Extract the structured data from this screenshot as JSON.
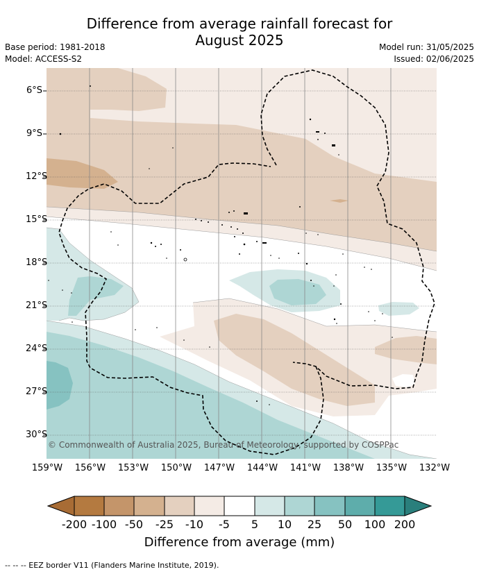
{
  "title_line1": "Difference from average rainfall forecast for",
  "title_line2": "August 2025",
  "meta": {
    "base_period": "Base period: 1981-2018",
    "model": "Model: ACCESS-S2",
    "model_run": "Model run: 31/05/2025",
    "issued": "Issued: 02/06/2025"
  },
  "map": {
    "lat_labels": [
      "6°S",
      "9°S",
      "12°S",
      "15°S",
      "18°S",
      "21°S",
      "24°S",
      "27°S",
      "30°S"
    ],
    "lon_labels": [
      "159°W",
      "156°W",
      "153°W",
      "150°W",
      "147°W",
      "144°W",
      "141°W",
      "138°W",
      "135°W",
      "132°W"
    ],
    "copyright": "© Commonwealth of Australia 2025, Bureau of Meteorology, supported by COSPPac"
  },
  "colorbar": {
    "labels": [
      "-200",
      "-100",
      "-50",
      "-25",
      "-10",
      "-5",
      "5",
      "10",
      "25",
      "50",
      "100",
      "200"
    ],
    "colors": [
      "#a86c35",
      "#b47a40",
      "#c4956a",
      "#d4b18f",
      "#e4d0bf",
      "#f4ebe5",
      "#ffffff",
      "#d5e8e7",
      "#aed6d4",
      "#86c2c1",
      "#5eadab",
      "#359a97",
      "#2a7f7c"
    ],
    "title": "Difference from average (mm)"
  },
  "footnote": "--  --  -- EEZ border V11 (Flanders Marine Institute, 2019)."
}
